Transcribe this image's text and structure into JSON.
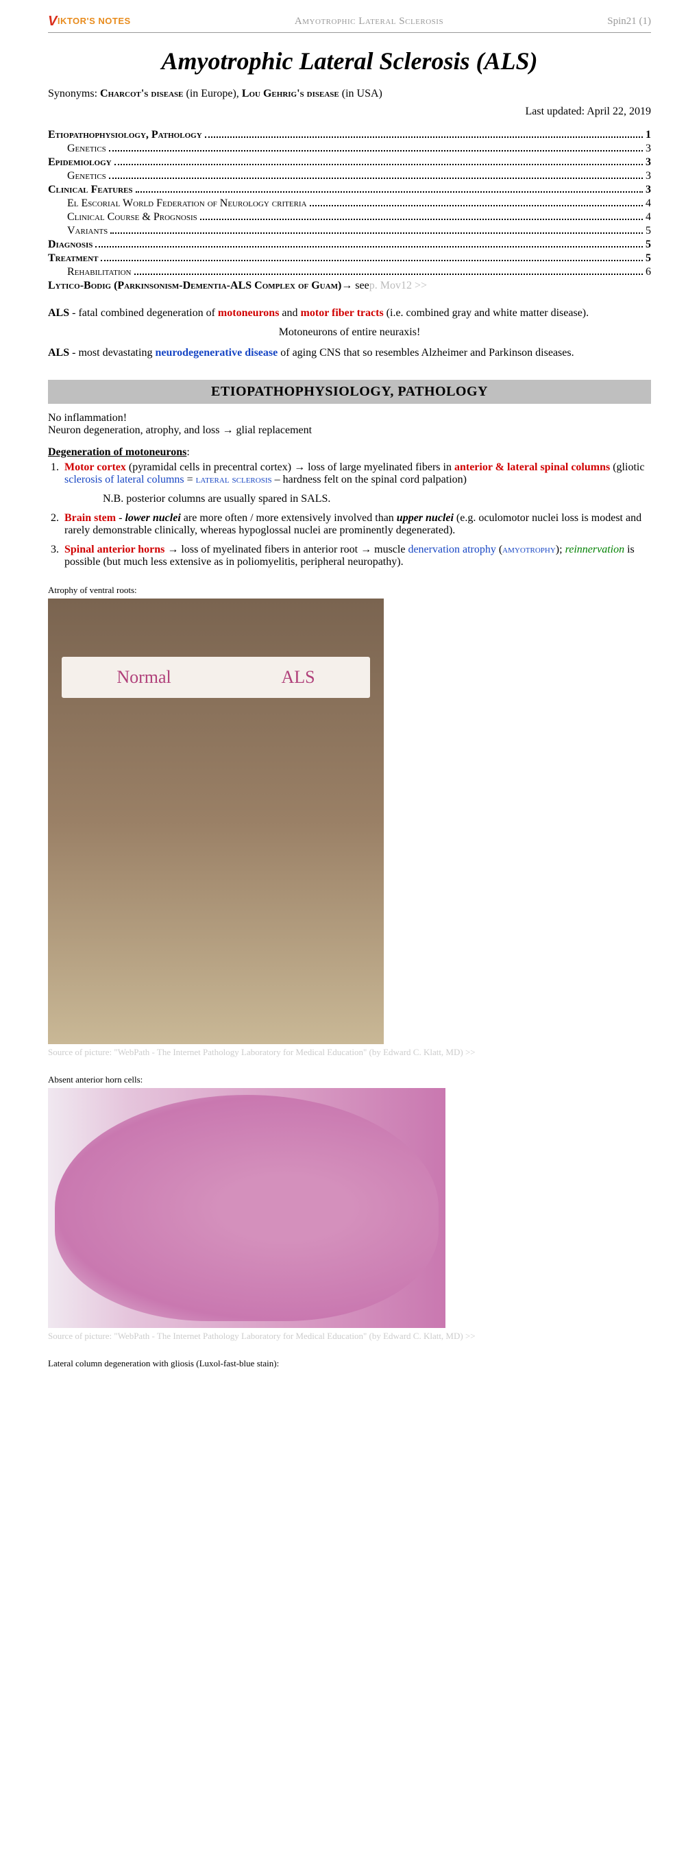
{
  "header": {
    "logo_text": "IKTOR'S NOTES",
    "title": "Amyotrophic Lateral Sclerosis",
    "page_ref": "Spin21 (1)"
  },
  "main_title": "Amyotrophic Lateral Sclerosis (ALS)",
  "synonyms": {
    "prefix": "Synonyms: ",
    "charcot": "Charcot's disease",
    "charcot_region": " (in Europe), ",
    "lou": "Lou Gehrig's disease",
    "lou_region": " (in USA)"
  },
  "last_updated": "Last updated: April 22, 2019",
  "toc": [
    {
      "text": "Etiopathophysiology, Pathology",
      "page": "1",
      "bold": true,
      "indent": 0
    },
    {
      "text": "Genetics",
      "page": "3",
      "bold": false,
      "indent": 1
    },
    {
      "text": "Epidemiology",
      "page": "3",
      "bold": true,
      "indent": 0
    },
    {
      "text": "Genetics",
      "page": "3",
      "bold": false,
      "indent": 1
    },
    {
      "text": "Clinical Features",
      "page": "3",
      "bold": true,
      "indent": 0
    },
    {
      "text": "El Escorial World Federation of Neurology criteria",
      "page": "4",
      "bold": false,
      "indent": 1
    },
    {
      "text": "Clinical Course & Prognosis",
      "page": "4",
      "bold": false,
      "indent": 1
    },
    {
      "text": "Variants",
      "page": "5",
      "bold": false,
      "indent": 1
    },
    {
      "text": "Diagnosis",
      "page": "5",
      "bold": true,
      "indent": 0
    },
    {
      "text": "Treatment",
      "page": "5",
      "bold": true,
      "indent": 0
    },
    {
      "text": "Rehabilitation",
      "page": "6",
      "bold": false,
      "indent": 1
    }
  ],
  "toc_see_line": {
    "text": "Lytico-Bodig (Parkinsonism-Dementia-ALS Complex of Guam)",
    "arrow": " → see ",
    "link": "p. Mov12 >>"
  },
  "intro": {
    "p1_label": "ALS",
    "p1_a": " - fatal combined degeneration of ",
    "p1_moto": "motoneurons",
    "p1_b": " and ",
    "p1_tracts": "motor fiber tracts",
    "p1_c": " (i.e. combined gray and white matter disease).",
    "p1_center": "Motoneurons of entire neuraxis!",
    "p2_label": "ALS",
    "p2_a": " - most devastating ",
    "p2_neuro": "neurodegenerative disease",
    "p2_b": " of aging CNS that so resembles Alzheimer and Parkinson diseases."
  },
  "section1": {
    "heading": "ETIOPATHOPHYSIOLOGY, PATHOLOGY",
    "line1": "No inflammation!",
    "line2": "Neuron degeneration, atrophy, and loss → glial replacement",
    "degen_title": "Degeneration of motoneurons",
    "item1": {
      "a": "Motor cortex",
      "b": " (pyramidal cells in precentral cortex) → loss of large myelinated fibers in ",
      "c": "anterior & lateral spinal columns",
      "d": " (gliotic ",
      "e": "sclerosis of lateral columns",
      "f": " = ",
      "g": "lateral sclerosis",
      "h": " – hardness felt on the spinal cord palpation)",
      "nb": "N.B. posterior columns are usually spared in SALS."
    },
    "item2": {
      "a": "Brain stem",
      "b": " - ",
      "c": "lower nuclei",
      "d": " are more often / more extensively involved than ",
      "e": "upper nuclei",
      "f": " (e.g. oculomotor nuclei loss is modest and rarely demonstrable clinically, whereas hypoglossal nuclei are prominently degenerated)."
    },
    "item3": {
      "a": "Spinal anterior horns",
      "b": " → loss of myelinated fibers in anterior root → muscle ",
      "c": "denervation atrophy",
      "d": " (",
      "e": "amyotrophy",
      "f": "); ",
      "g": "reinnervation",
      "h": " is possible (but much less extensive as in poliomyelitis, peripheral neuropathy)."
    }
  },
  "figures": {
    "fig1_caption": "Atrophy of ventral roots:",
    "fig1_label_normal": "Normal",
    "fig1_label_als": "ALS",
    "source": "Source of picture: \"WebPath - The Internet Pathology Laboratory for Medical Education\" (by Edward C. Klatt, MD) >>",
    "fig2_caption": "Absent anterior horn cells:",
    "fig3_caption": "Lateral column degeneration with gliosis (Luxol-fast-blue stain):"
  }
}
